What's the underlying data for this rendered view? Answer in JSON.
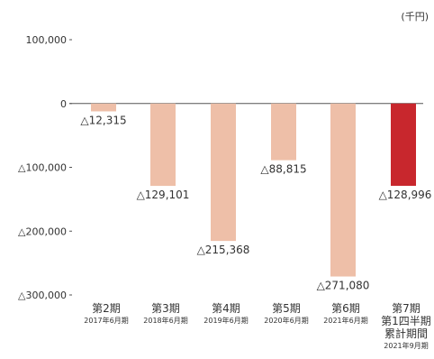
{
  "chart_data": {
    "type": "bar",
    "unit": "(千円)",
    "ylim": [
      -300000,
      100000
    ],
    "yticks": [
      {
        "value": 100000,
        "label": "100,000"
      },
      {
        "value": 0,
        "label": "0"
      },
      {
        "value": -100000,
        "label": "△100,000"
      },
      {
        "value": -200000,
        "label": "△200,000"
      },
      {
        "value": -300000,
        "label": "△300,000"
      }
    ],
    "categories": [
      {
        "lines": [
          "第2期"
        ],
        "sub": [
          "2017年6月期"
        ]
      },
      {
        "lines": [
          "第3期"
        ],
        "sub": [
          "2018年6月期"
        ]
      },
      {
        "lines": [
          "第4期"
        ],
        "sub": [
          "2019年6月期"
        ]
      },
      {
        "lines": [
          "第5期"
        ],
        "sub": [
          "2020年6月期"
        ]
      },
      {
        "lines": [
          "第6期"
        ],
        "sub": [
          "2021年6月期"
        ]
      },
      {
        "lines": [
          "第7期",
          "第1四半期",
          "累計期間"
        ],
        "sub": [
          "2021年9月期"
        ]
      }
    ],
    "values": [
      -12315,
      -129101,
      -215368,
      -88815,
      -271080,
      -128996
    ],
    "data_labels": [
      "△12,315",
      "△129,101",
      "△215,368",
      "△88,815",
      "△271,080",
      "△128,996"
    ],
    "colors": [
      "#eebfa8",
      "#eebfa8",
      "#eebfa8",
      "#eebfa8",
      "#eebfa8",
      "#c8272d"
    ]
  }
}
